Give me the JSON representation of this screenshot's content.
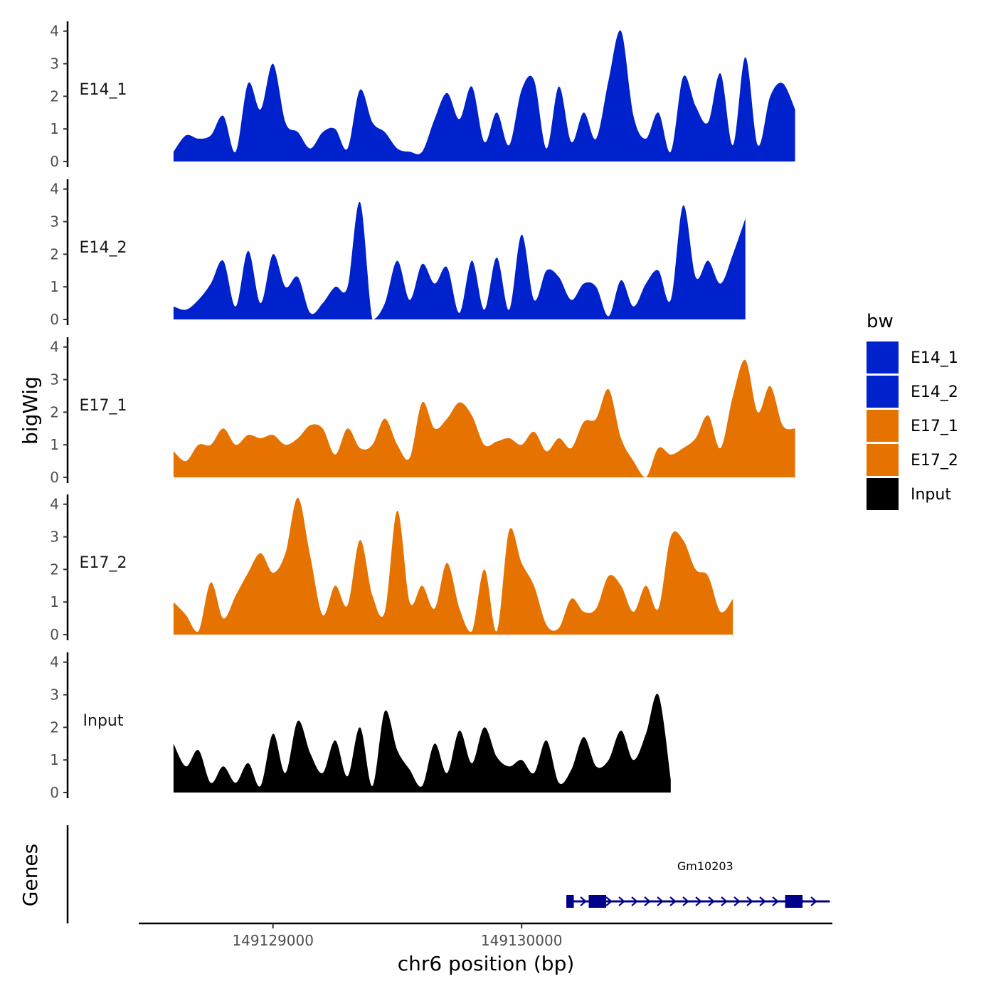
{
  "chart_data": {
    "type": "area",
    "ylabel": "bigWig",
    "xlabel": "chr6 position (bp)",
    "genes_label": "Genes",
    "xlim": [
      128460,
      131250
    ],
    "ylim": [
      0,
      4.3
    ],
    "yticks": [
      0,
      1,
      2,
      3,
      4
    ],
    "xticks": [
      149129000,
      149130000
    ],
    "xtick_labels": [
      "149129000",
      "149130000"
    ],
    "legend": {
      "title": "bw",
      "entries": [
        {
          "label": "E14_1",
          "color": "#0022CC"
        },
        {
          "label": "E14_2",
          "color": "#0022CC"
        },
        {
          "label": "E17_1",
          "color": "#E67300"
        },
        {
          "label": "E17_2",
          "color": "#E67300"
        },
        {
          "label": "Input",
          "color": "#000000"
        }
      ]
    },
    "x_start": 128600,
    "x_step": 50,
    "series": [
      {
        "name": "E14_1",
        "color": "#0022CC",
        "values": [
          0.3,
          0.8,
          0.7,
          0.8,
          1.4,
          0.3,
          2.4,
          1.6,
          3.0,
          1.2,
          0.9,
          0.4,
          0.9,
          1.0,
          0.4,
          2.2,
          1.2,
          0.9,
          0.4,
          0.3,
          0.3,
          1.3,
          2.1,
          1.3,
          2.3,
          0.6,
          1.5,
          0.5,
          2.2,
          2.5,
          0.4,
          2.3,
          0.6,
          1.5,
          0.7,
          2.5,
          4.0,
          1.4,
          0.7,
          1.5,
          0.3,
          2.6,
          1.7,
          1.2,
          2.7,
          0.5,
          3.2,
          0.5,
          2.0,
          2.4,
          1.6
        ]
      },
      {
        "name": "E14_2",
        "color": "#0022CC",
        "values": [
          0.4,
          0.3,
          0.6,
          1.1,
          1.8,
          0.4,
          2.1,
          0.5,
          2.0,
          1.0,
          1.3,
          0.2,
          0.5,
          1.0,
          1.0,
          3.6,
          0.0,
          0.5,
          1.8,
          0.6,
          1.7,
          1.1,
          1.6,
          0.2,
          1.8,
          0.3,
          1.9,
          0.3,
          2.6,
          0.6,
          1.5,
          1.3,
          0.6,
          1.1,
          1.0,
          0.1,
          1.2,
          0.4,
          1.1,
          1.5,
          0.6,
          3.5,
          1.3,
          1.8,
          1.1,
          2.0,
          3.1
        ]
      },
      {
        "name": "E17_1",
        "color": "#E67300",
        "values": [
          0.8,
          0.5,
          1.0,
          1.0,
          1.5,
          1.0,
          1.3,
          1.2,
          1.3,
          1.0,
          1.2,
          1.6,
          1.5,
          0.7,
          1.5,
          0.9,
          1.0,
          1.8,
          1.0,
          0.6,
          2.3,
          1.5,
          1.8,
          2.3,
          1.9,
          1.0,
          1.1,
          1.2,
          1.0,
          1.4,
          0.8,
          1.2,
          0.9,
          1.7,
          1.8,
          2.7,
          1.2,
          0.5,
          0.0,
          0.9,
          0.7,
          0.9,
          1.2,
          1.9,
          0.9,
          2.5,
          3.6,
          2.0,
          2.8,
          1.6,
          1.5
        ]
      },
      {
        "name": "E17_2",
        "color": "#E67300",
        "values": [
          1.0,
          0.6,
          0.1,
          1.6,
          0.5,
          1.2,
          1.9,
          2.5,
          1.9,
          2.5,
          4.2,
          2.4,
          0.6,
          1.5,
          0.9,
          2.9,
          1.2,
          0.7,
          3.8,
          1.0,
          1.5,
          0.8,
          2.2,
          0.8,
          0.1,
          2.0,
          0.1,
          3.2,
          2.2,
          1.5,
          0.3,
          0.2,
          1.1,
          0.7,
          0.8,
          1.8,
          1.5,
          0.7,
          1.5,
          0.8,
          3.0,
          2.9,
          2.0,
          1.8,
          0.7,
          1.1
        ]
      },
      {
        "name": "Input",
        "color": "#000000",
        "values": [
          1.5,
          0.8,
          1.3,
          0.3,
          0.8,
          0.3,
          0.9,
          0.2,
          1.8,
          0.6,
          2.2,
          1.2,
          0.6,
          1.6,
          0.5,
          2.0,
          0.2,
          2.5,
          1.3,
          0.7,
          0.2,
          1.5,
          0.6,
          1.9,
          0.9,
          2.0,
          1.1,
          0.8,
          1.0,
          0.6,
          1.6,
          0.3,
          0.7,
          1.7,
          0.8,
          1.0,
          1.9,
          1.0,
          1.8,
          3.0,
          0.4
        ]
      }
    ],
    "gene": {
      "name": "Gm10203",
      "start": 130180,
      "end": 131240,
      "strand": "+",
      "exons": [
        [
          130180,
          130210
        ],
        [
          130270,
          130340
        ],
        [
          131060,
          131130
        ]
      ],
      "color": "#00008B"
    }
  }
}
